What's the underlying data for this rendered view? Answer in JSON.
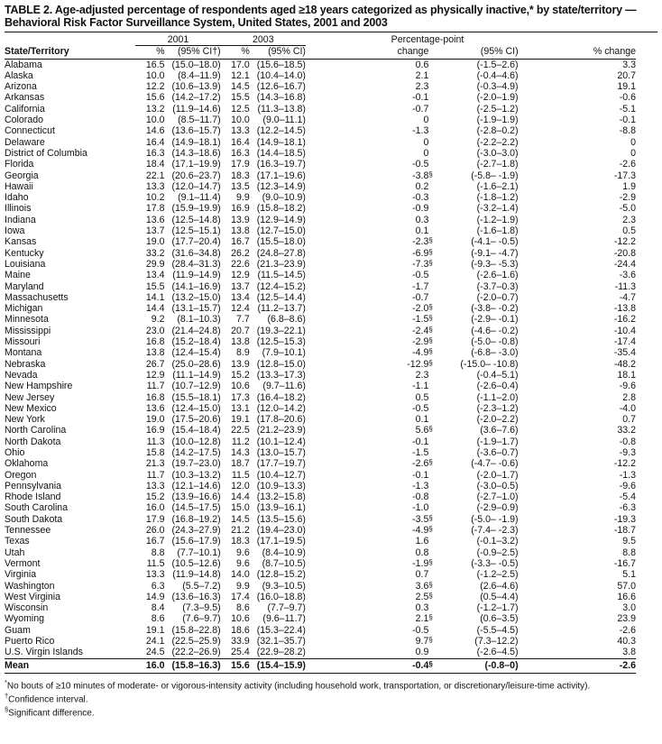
{
  "title_line1": "TABLE 2. Age-adjusted percentage of respondents aged ≥18 years categorized as physically inactive,* by state/territory —",
  "title_line2": "Behavioral Risk Factor Surveillance System, United States, 2001 and 2003",
  "headers": {
    "year1": "2001",
    "year2": "2003",
    "ppc_top": "Percentage-point",
    "state": "State/Territory",
    "pct1": "%",
    "ci1": "(95% CI†)",
    "pct2": "%",
    "ci2": "(95% CI)",
    "change": "change",
    "ci3": "(95% CI)",
    "pct_change": "% change"
  },
  "rows": [
    [
      "Alabama",
      "16.5",
      "(15.0–18.0)",
      "17.0",
      "(15.6–18.5)",
      "0.6",
      "",
      "(-1.5–2.6)",
      "3.3"
    ],
    [
      "Alaska",
      "10.0",
      "(8.4–11.9)",
      "12.1",
      "(10.4–14.0)",
      "2.1",
      "",
      "(-0.4–4.6)",
      "20.7"
    ],
    [
      "Arizona",
      "12.2",
      "(10.6–13.9)",
      "14.5",
      "(12.6–16.7)",
      "2.3",
      "",
      "(-0.3–4.9)",
      "19.1"
    ],
    [
      "Arkansas",
      "15.6",
      "(14.2–17.2)",
      "15.5",
      "(14.3–16.8)",
      "-0.1",
      "",
      "(-2.0–1.9)",
      "-0.6"
    ],
    [
      "California",
      "13.2",
      "(11.9–14.6)",
      "12.5",
      "(11.3–13.8)",
      "-0.7",
      "",
      "(-2.5–1.2)",
      "-5.1"
    ],
    [
      "Colorado",
      "10.0",
      "(8.5–11.7)",
      "10.0",
      "(9.0–11.1)",
      "0",
      "",
      "(-1.9–1.9)",
      "-0.1"
    ],
    [
      "Connecticut",
      "14.6",
      "(13.6–15.7)",
      "13.3",
      "(12.2–14.5)",
      "-1.3",
      "",
      "(-2.8–0.2)",
      "-8.8"
    ],
    [
      "Delaware",
      "16.4",
      "(14.9–18.1)",
      "16.4",
      "(14.9–18.1)",
      "0",
      "",
      "(-2.2–2.2)",
      "0"
    ],
    [
      "District of Columbia",
      "16.3",
      "(14.3–18.6)",
      "16.3",
      "(14.4–18.5)",
      "0",
      "",
      "(-3.0–3.0)",
      "0"
    ],
    [
      "Florida",
      "18.4",
      "(17.1–19.9)",
      "17.9",
      "(16.3–19.7)",
      "-0.5",
      "",
      "(-2.7–1.8)",
      "-2.6"
    ],
    [
      "Georgia",
      "22.1",
      "(20.6–23.7)",
      "18.3",
      "(17.1–19.6)",
      "-3.8",
      "§",
      "(-5.8– -1.9)",
      "-17.3"
    ],
    [
      "Hawaii",
      "13.3",
      "(12.0–14.7)",
      "13.5",
      "(12.3–14.9)",
      "0.2",
      "",
      "(-1.6–2.1)",
      "1.9"
    ],
    [
      "Idaho",
      "10.2",
      "(9.1–11.4)",
      "9.9",
      "(9.0–10.9)",
      "-0.3",
      "",
      "(-1.8–1.2)",
      "-2.9"
    ],
    [
      "Illinois",
      "17.8",
      "(15.9–19.9)",
      "16.9",
      "(15.8–18.2)",
      "-0.9",
      "",
      "(-3.2–1.4)",
      "-5.0"
    ],
    [
      "Indiana",
      "13.6",
      "(12.5–14.8)",
      "13.9",
      "(12.9–14.9)",
      "0.3",
      "",
      "(-1.2–1.9)",
      "2.3"
    ],
    [
      "Iowa",
      "13.7",
      "(12.5–15.1)",
      "13.8",
      "(12.7–15.0)",
      "0.1",
      "",
      "(-1.6–1.8)",
      "0.5"
    ],
    [
      "Kansas",
      "19.0",
      "(17.7–20.4)",
      "16.7",
      "(15.5–18.0)",
      "-2.3",
      "§",
      "(-4.1– -0.5)",
      "-12.2"
    ],
    [
      "Kentucky",
      "33.2",
      "(31.6–34.8)",
      "26.2",
      "(24.8–27.8)",
      "-6.9",
      "§",
      "(-9.1– -4.7)",
      "-20.8"
    ],
    [
      "Louisiana",
      "29.9",
      "(28.4–31.3)",
      "22.6",
      "(21.3–23.9)",
      "-7.3",
      "§",
      "(-9.3– -5.3)",
      "-24.4"
    ],
    [
      "Maine",
      "13.4",
      "(11.9–14.9)",
      "12.9",
      "(11.5–14.5)",
      "-0.5",
      "",
      "(-2.6–1.6)",
      "-3.6"
    ],
    [
      "Maryland",
      "15.5",
      "(14.1–16.9)",
      "13.7",
      "(12.4–15.2)",
      "-1.7",
      "",
      "(-3.7–0.3)",
      "-11.3"
    ],
    [
      "Massachusetts",
      "14.1",
      "(13.2–15.0)",
      "13.4",
      "(12.5–14.4)",
      "-0.7",
      "",
      "(-2.0–0.7)",
      "-4.7"
    ],
    [
      "Michigan",
      "14.4",
      "(13.1–15.7)",
      "12.4",
      "(11.2–13.7)",
      "-2.0",
      "§",
      "(-3.8– -0.2)",
      "-13.8"
    ],
    [
      "Minnesota",
      "9.2",
      "(8.1–10.3)",
      "7.7",
      "(6.8–8.6)",
      "-1.5",
      "§",
      "(-2.9– -0.1)",
      "-16.2"
    ],
    [
      "Mississippi",
      "23.0",
      "(21.4–24.8)",
      "20.7",
      "(19.3–22.1)",
      "-2.4",
      "§",
      "(-4.6– -0.2)",
      "-10.4"
    ],
    [
      "Missouri",
      "16.8",
      "(15.2–18.4)",
      "13.8",
      "(12.5–15.3)",
      "-2.9",
      "§",
      "(-5.0– -0.8)",
      "-17.4"
    ],
    [
      "Montana",
      "13.8",
      "(12.4–15.4)",
      "8.9",
      "(7.9–10.1)",
      "-4.9",
      "§",
      "(-6.8– -3.0)",
      "-35.4"
    ],
    [
      "Nebraska",
      "26.7",
      "(25.0–28.6)",
      "13.9",
      "(12.8–15.0)",
      "-12.9",
      "§",
      "(-15.0– -10.8)",
      "-48.2"
    ],
    [
      "Nevada",
      "12.9",
      "(11.1–14.9)",
      "15.2",
      "(13.3–17.3)",
      "2.3",
      "",
      "(-0.4–5.1)",
      "18.1"
    ],
    [
      "New Hampshire",
      "11.7",
      "(10.7–12.9)",
      "10.6",
      "(9.7–11.6)",
      "-1.1",
      "",
      "(-2.6–0.4)",
      "-9.6"
    ],
    [
      "New Jersey",
      "16.8",
      "(15.5–18.1)",
      "17.3",
      "(16.4–18.2)",
      "0.5",
      "",
      "(-1.1–2.0)",
      "2.8"
    ],
    [
      "New Mexico",
      "13.6",
      "(12.4–15.0)",
      "13.1",
      "(12.0–14.2)",
      "-0.5",
      "",
      "(-2.3–1.2)",
      "-4.0"
    ],
    [
      "New York",
      "19.0",
      "(17.5–20.6)",
      "19.1",
      "(17.8–20.6)",
      "0.1",
      "",
      "(-2.0–2.2)",
      "0.7"
    ],
    [
      "North Carolina",
      "16.9",
      "(15.4–18.4)",
      "22.5",
      "(21.2–23.9)",
      "5.6",
      "§",
      "(3.6–7.6)",
      "33.2"
    ],
    [
      "North Dakota",
      "11.3",
      "(10.0–12.8)",
      "11.2",
      "(10.1–12.4)",
      "-0.1",
      "",
      "(-1.9–1.7)",
      "-0.8"
    ],
    [
      "Ohio",
      "15.8",
      "(14.2–17.5)",
      "14.3",
      "(13.0–15.7)",
      "-1.5",
      "",
      "(-3.6–0.7)",
      "-9.3"
    ],
    [
      "Oklahoma",
      "21.3",
      "(19.7–23.0)",
      "18.7",
      "(17.7–19.7)",
      "-2.6",
      "§",
      "(-4.7– -0.6)",
      "-12.2"
    ],
    [
      "Oregon",
      "11.7",
      "(10.3–13.2)",
      "11.5",
      "(10.4–12.7)",
      "-0.1",
      "",
      "(-2.0–1.7)",
      "-1.3"
    ],
    [
      "Pennsylvania",
      "13.3",
      "(12.1–14.6)",
      "12.0",
      "(10.9–13.3)",
      "-1.3",
      "",
      "(-3.0–0.5)",
      "-9.6"
    ],
    [
      "Rhode Island",
      "15.2",
      "(13.9–16.6)",
      "14.4",
      "(13.2–15.8)",
      "-0.8",
      "",
      "(-2.7–1.0)",
      "-5.4"
    ],
    [
      "South Carolina",
      "16.0",
      "(14.5–17.5)",
      "15.0",
      "(13.9–16.1)",
      "-1.0",
      "",
      "(-2.9–0.9)",
      "-6.3"
    ],
    [
      "South Dakota",
      "17.9",
      "(16.8–19.2)",
      "14.5",
      "(13.5–15.6)",
      "-3.5",
      "§",
      "(-5.0– -1.9)",
      "-19.3"
    ],
    [
      "Tennessee",
      "26.0",
      "(24.3–27.9)",
      "21.2",
      "(19.4–23.0)",
      "-4.9",
      "§",
      "(-7.4– -2.3)",
      "-18.7"
    ],
    [
      "Texas",
      "16.7",
      "(15.6–17.9)",
      "18.3",
      "(17.1–19.5)",
      "1.6",
      "",
      "(-0.1–3.2)",
      "9.5"
    ],
    [
      "Utah",
      "8.8",
      "(7.7–10.1)",
      "9.6",
      "(8.4–10.9)",
      "0.8",
      "",
      "(-0.9–2.5)",
      "8.8"
    ],
    [
      "Vermont",
      "11.5",
      "(10.5–12.6)",
      "9.6",
      "(8.7–10.5)",
      "-1.9",
      "§",
      "(-3.3– -0.5)",
      "-16.7"
    ],
    [
      "Virginia",
      "13.3",
      "(11.9–14.8)",
      "14.0",
      "(12.8–15.2)",
      "0.7",
      "",
      "(-1.2–2.5)",
      "5.1"
    ],
    [
      "Washington",
      "6.3",
      "(5.5–7.2)",
      "9.9",
      "(9.3–10.5)",
      "3.6",
      "§",
      "(2.6–4.6)",
      "57.0"
    ],
    [
      "West Virginia",
      "14.9",
      "(13.6–16.3)",
      "17.4",
      "(16.0–18.8)",
      "2.5",
      "§",
      "(0.5–4.4)",
      "16.6"
    ],
    [
      "Wisconsin",
      "8.4",
      "(7.3–9.5)",
      "8.6",
      "(7.7–9.7)",
      "0.3",
      "",
      "(-1.2–1.7)",
      "3.0"
    ],
    [
      "Wyoming",
      "8.6",
      "(7.6–9.7)",
      "10.6",
      "(9.6–11.7)",
      "2.1",
      "§",
      "(0.6–3.5)",
      "23.9"
    ],
    [
      "Guam",
      "19.1",
      "(15.8–22.8)",
      "18.6",
      "(15.3–22.4)",
      "-0.5",
      "",
      "(-5.5–4.5)",
      "-2.6"
    ],
    [
      "Puerto Rico",
      "24.1",
      "(22.5–25.9)",
      "33.9",
      "(32.1–35.7)",
      "9.7",
      "§",
      "(7.3–12.2)",
      "40.3"
    ],
    [
      "U.S. Virgin Islands",
      "24.5",
      "(22.2–26.9)",
      "25.4",
      "(22.9–28.2)",
      "0.9",
      "",
      "(-2.6–4.5)",
      "3.8"
    ]
  ],
  "mean": [
    "Mean",
    "16.0",
    "(15.8–16.3)",
    "15.6",
    "(15.4–15.9)",
    "-0.4",
    "§",
    "(-0.8–0)",
    "-2.6"
  ],
  "footnotes": [
    {
      "mark": "*",
      "text": "No bouts of ≥10 minutes of moderate- or vigorous-intensity activity (including household work, transportation, or discretionary/leisure-time activity)."
    },
    {
      "mark": "†",
      "text": "Confidence interval."
    },
    {
      "mark": "§",
      "text": "Significant difference."
    }
  ]
}
